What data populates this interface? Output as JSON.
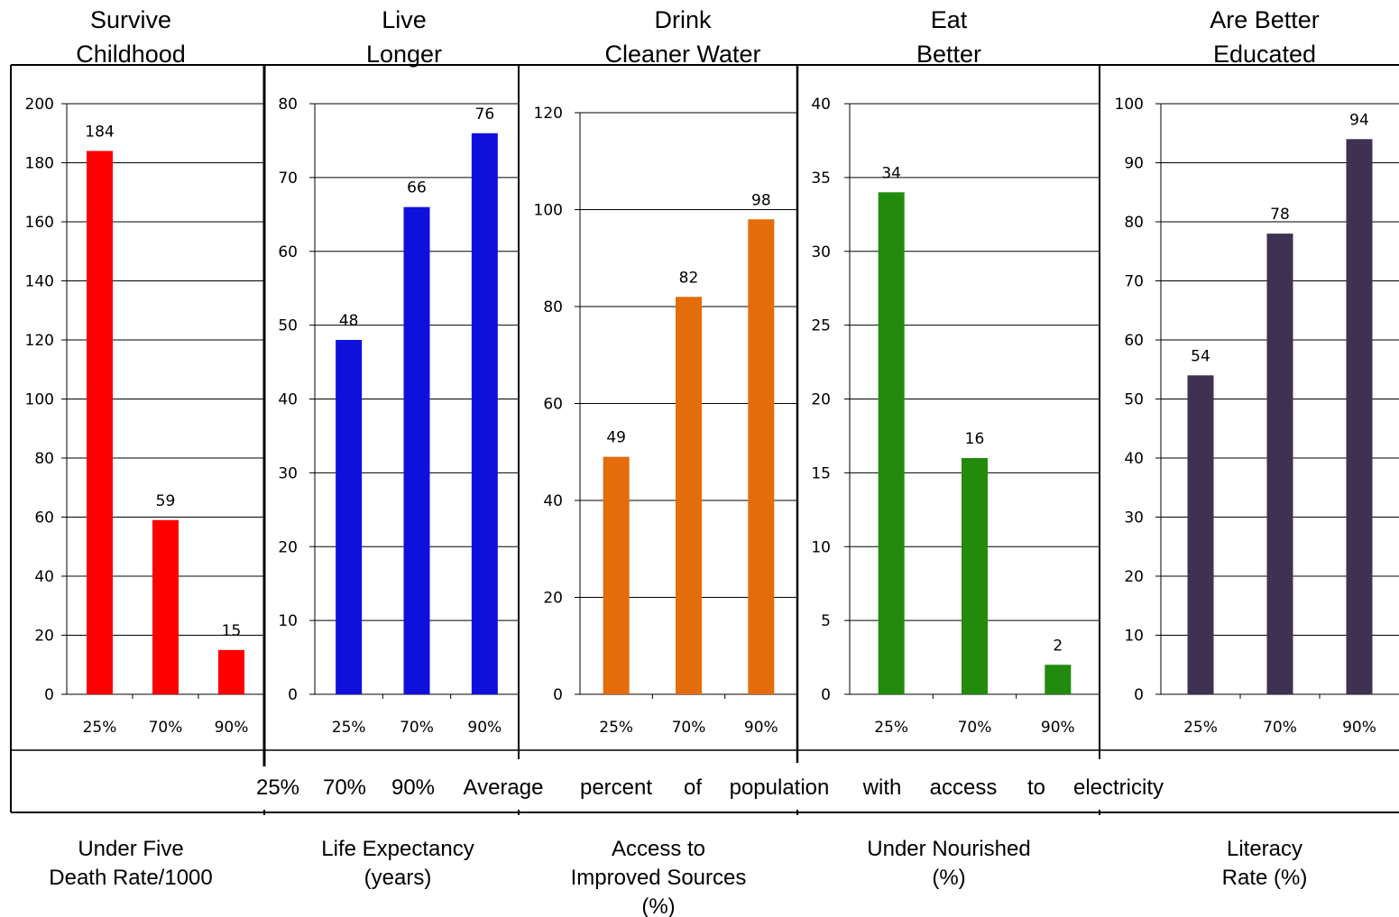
{
  "x_axis_band": {
    "words": [
      "25%",
      "70%",
      "90%",
      "Average",
      "percent",
      "of",
      "population",
      "with",
      "access",
      "to",
      "electricity"
    ]
  },
  "chart_data": [
    {
      "type": "bar",
      "title": [
        "Survive",
        "Childhood"
      ],
      "categories": [
        "25%",
        "70%",
        "90%"
      ],
      "values": [
        184,
        59,
        15
      ],
      "ylim": [
        0,
        200
      ],
      "yticks": [
        0,
        20,
        40,
        60,
        80,
        100,
        120,
        140,
        160,
        180,
        200
      ],
      "ylabel": [
        "Under Five",
        "Death Rate/1000"
      ],
      "color": "#ff0000",
      "grid": true
    },
    {
      "type": "bar",
      "title": [
        "Live",
        "Longer"
      ],
      "categories": [
        "25%",
        "70%",
        "90%"
      ],
      "values": [
        48,
        66,
        76
      ],
      "ylim": [
        0,
        80
      ],
      "yticks": [
        0,
        10,
        20,
        30,
        40,
        50,
        60,
        70,
        80
      ],
      "ylabel": [
        "Life Expectancy",
        "(years)"
      ],
      "color": "#1010dd",
      "grid": true
    },
    {
      "type": "bar",
      "title": [
        "Drink",
        "Cleaner Water"
      ],
      "categories": [
        "25%",
        "70%",
        "90%"
      ],
      "values": [
        49,
        82,
        98
      ],
      "ylim": [
        0,
        120
      ],
      "yticks": [
        0,
        20,
        40,
        60,
        80,
        100,
        120
      ],
      "ylabel": [
        "Access to",
        "Improved Sources",
        "(%)"
      ],
      "color": "#e46c0a",
      "grid": true
    },
    {
      "type": "bar",
      "title": [
        "Eat",
        "Better"
      ],
      "categories": [
        "25%",
        "70%",
        "90%"
      ],
      "values": [
        34,
        16,
        2
      ],
      "ylim": [
        0,
        40
      ],
      "yticks": [
        0,
        5,
        10,
        15,
        20,
        25,
        30,
        35,
        40
      ],
      "ylabel": [
        "Under Nourished",
        "(%)"
      ],
      "color": "#228b0e",
      "grid": true
    },
    {
      "type": "bar",
      "title": [
        "Are Better",
        "Educated"
      ],
      "categories": [
        "25%",
        "70%",
        "90%"
      ],
      "values": [
        54,
        78,
        94
      ],
      "ylim": [
        0,
        100
      ],
      "yticks": [
        0,
        10,
        20,
        30,
        40,
        50,
        60,
        70,
        80,
        90,
        100
      ],
      "ylabel": [
        "Literacy",
        "Rate (%)"
      ],
      "color": "#3f3151",
      "grid": true
    }
  ]
}
